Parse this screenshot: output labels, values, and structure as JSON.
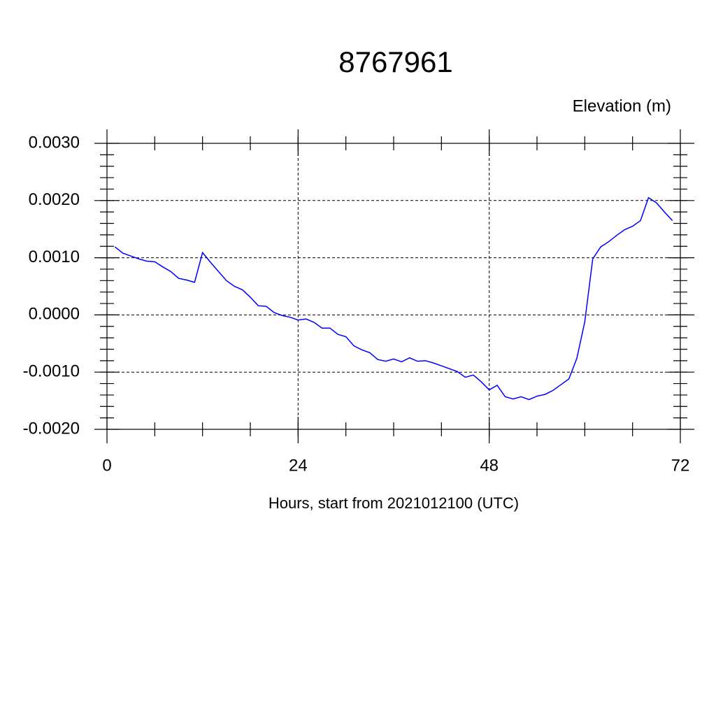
{
  "chart_data": {
    "type": "line",
    "title": "8767961",
    "subtitle": "Elevation (m)",
    "x_label": "Hours, start from 2021012100 (UTC)",
    "x": [
      1,
      2,
      3,
      4,
      5,
      6,
      7,
      8,
      9,
      10,
      11,
      12,
      13,
      14,
      15,
      16,
      17,
      18,
      19,
      20,
      21,
      22,
      23,
      24,
      25,
      26,
      27,
      28,
      29,
      30,
      31,
      32,
      33,
      34,
      35,
      36,
      37,
      38,
      39,
      40,
      41,
      42,
      43,
      44,
      45,
      46,
      47,
      48,
      49,
      50,
      51,
      52,
      53,
      54,
      55,
      56,
      57,
      58,
      59,
      60,
      61,
      62,
      63,
      64,
      65,
      66,
      67,
      68,
      69,
      70,
      71
    ],
    "series": [
      {
        "name": "Elevation",
        "color": "#0000ff",
        "values": [
          0.00119,
          0.00108,
          0.00103,
          0.00098,
          0.00094,
          0.00093,
          0.00084,
          0.00076,
          0.00064,
          0.00061,
          0.00057,
          0.00109,
          0.00092,
          0.00076,
          0.0006,
          0.0005,
          0.00044,
          0.00031,
          0.00016,
          0.00015,
          4e-05,
          -1e-05,
          -4e-05,
          -9e-05,
          -7e-05,
          -0.00013,
          -0.00023,
          -0.00023,
          -0.00034,
          -0.00038,
          -0.00054,
          -0.00061,
          -0.00066,
          -0.00078,
          -0.00081,
          -0.00077,
          -0.00082,
          -0.00075,
          -0.00081,
          -0.0008,
          -0.00084,
          -0.00089,
          -0.00094,
          -0.00099,
          -0.00109,
          -0.00105,
          -0.00117,
          -0.00131,
          -0.00123,
          -0.00143,
          -0.00147,
          -0.00143,
          -0.00148,
          -0.00142,
          -0.00139,
          -0.00132,
          -0.00122,
          -0.00112,
          -0.00076,
          -0.00012,
          0.00098,
          0.00119,
          0.00128,
          0.00139,
          0.00149,
          0.00155,
          0.00165,
          0.00205,
          0.00196,
          0.0018,
          0.00165
        ]
      }
    ],
    "xlim": [
      0,
      72
    ],
    "xticks": [
      0,
      24,
      48,
      72
    ],
    "ylim": [
      -0.002,
      0.003
    ],
    "yticks": [
      {
        "value": -0.002,
        "label": "-0.0020"
      },
      {
        "value": -0.001,
        "label": "-0.0010"
      },
      {
        "value": 0,
        "label": "0.0000"
      },
      {
        "value": 0.001,
        "label": "0.0010"
      },
      {
        "value": 0.002,
        "label": "0.0020"
      },
      {
        "value": 0.003,
        "label": "0.0030"
      }
    ],
    "grid": true
  }
}
